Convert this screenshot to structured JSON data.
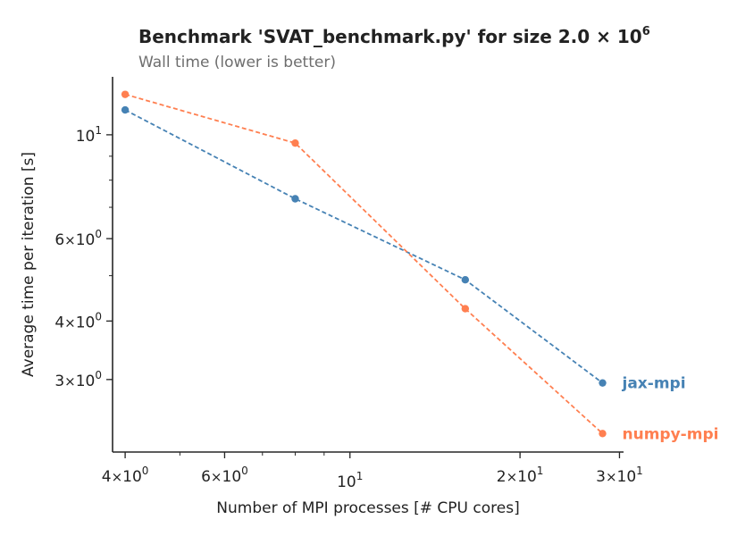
{
  "chart_data": {
    "type": "line",
    "title": "Benchmark 'SVAT_benchmark.py' for size 2.0 × 10",
    "title_exponent": "6",
    "subtitle": "Wall time (lower is better)",
    "xlabel": "Number of MPI processes [# CPU cores]",
    "ylabel": "Average time per iteration [s]",
    "xscale": "log",
    "yscale": "log",
    "xlim": [
      3.8,
      30.5
    ],
    "ylim": [
      2.1,
      13.3
    ],
    "grid": false,
    "legend": "direct labels at line ends (right)",
    "xticks": [
      {
        "value": 4,
        "mantissa": "4",
        "sep": "×",
        "base": "10",
        "exp": "0"
      },
      {
        "value": 6,
        "mantissa": "6",
        "sep": "×",
        "base": "10",
        "exp": "0"
      },
      {
        "value": 10,
        "mantissa": "",
        "sep": "",
        "base": "10",
        "exp": "1"
      },
      {
        "value": 20,
        "mantissa": "2",
        "sep": "×",
        "base": "10",
        "exp": "1"
      },
      {
        "value": 30,
        "mantissa": "3",
        "sep": "×",
        "base": "10",
        "exp": "1"
      }
    ],
    "yticks": [
      {
        "value": 3,
        "mantissa": "3",
        "sep": "×",
        "base": "10",
        "exp": "0"
      },
      {
        "value": 4,
        "mantissa": "4",
        "sep": "×",
        "base": "10",
        "exp": "0"
      },
      {
        "value": 6,
        "mantissa": "6",
        "sep": "×",
        "base": "10",
        "exp": "0"
      },
      {
        "value": 10,
        "mantissa": "",
        "sep": "",
        "base": "10",
        "exp": "1"
      }
    ],
    "x": [
      4,
      8,
      16,
      28
    ],
    "series": [
      {
        "name": "jax-mpi",
        "color": "#4682b4",
        "values": [
          11.3,
          7.3,
          4.9,
          2.95
        ]
      },
      {
        "name": "numpy-mpi",
        "color": "#ff7f50",
        "values": [
          12.2,
          9.6,
          4.25,
          2.3
        ]
      }
    ]
  }
}
